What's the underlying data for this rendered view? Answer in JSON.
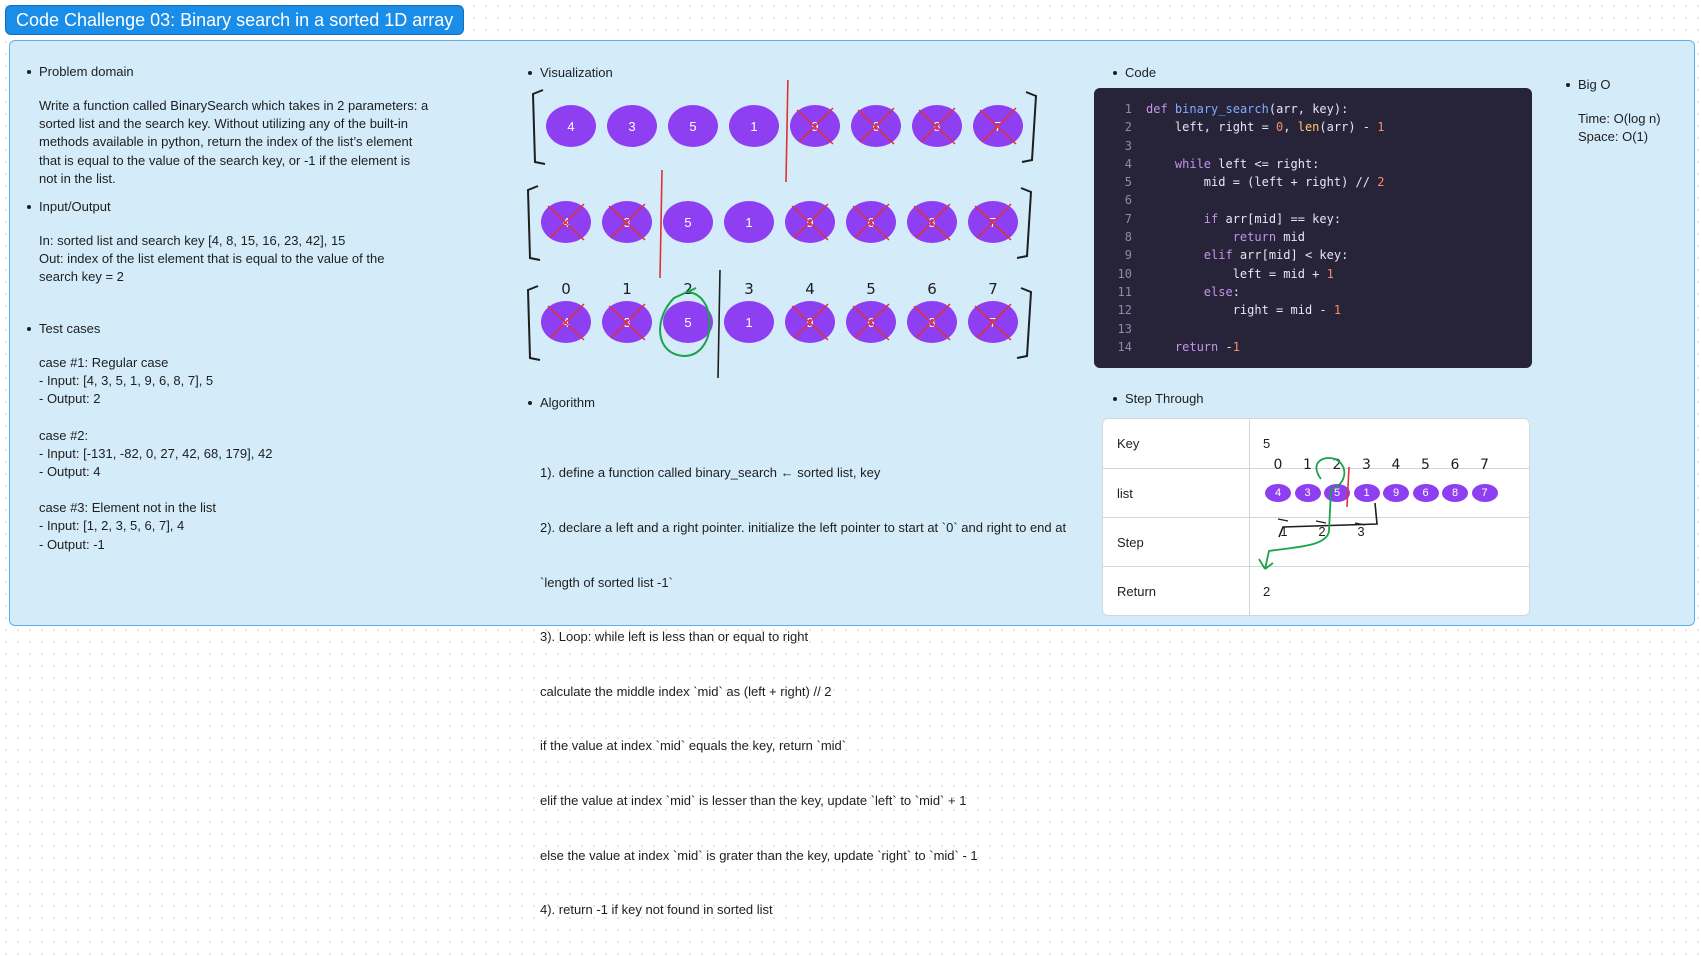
{
  "title": "Code Challenge 03: Binary search in a sorted 1D array",
  "problem": {
    "heading": "Problem domain",
    "lines": [
      "Write a function called BinarySearch which takes in 2 parameters: a",
      "sorted list and the search key. Without utilizing any of the built-in",
      "methods available in python, return the index of the list’s element",
      "that is equal to the value of the search key, or -1 if the element is",
      "not in the list."
    ]
  },
  "io": {
    "heading": "Input/Output",
    "lines": [
      "In: sorted list and search key [4, 8, 15, 16, 23, 42], 15",
      "Out: index of the list element that is equal to the value of the",
      "search key =  2"
    ]
  },
  "tests": {
    "heading": "Test cases",
    "lines": [
      "case #1: Regular case",
      " - Input: [4, 3, 5, 1, 9, 6, 8, 7], 5",
      "- Output: 2",
      "",
      "case #2:",
      " - Input: [-131, -82, 0, 27, 42, 68, 179], 42",
      "- Output: 4",
      "",
      "case #3: Element not in the list",
      " - Input: [1, 2, 3, 5, 6, 7], 4",
      "- Output: -1"
    ]
  },
  "visualization": {
    "heading": "Visualization",
    "values": [
      "4",
      "3",
      "5",
      "1",
      "9",
      "6",
      "8",
      "7"
    ],
    "indices": [
      "0",
      "1",
      "2",
      "3",
      "4",
      "5",
      "6",
      "7"
    ],
    "node_color": "#8f3ff2",
    "cross_color": "#e03131",
    "circle_color": "#1aa34a"
  },
  "algorithm": {
    "heading": "Algorithm",
    "lines": [
      "1). define a function called binary_search ← sorted list, key",
      "2). declare a left and a right pointer. initialize the left pointer to start at `0` and right to end at",
      "`length of sorted list -1`",
      "3). Loop: while left is less than or equal to right",
      "     calculate the middle index `mid` as (left + right) // 2",
      "     if the value at index `mid` equals the key, return `mid`",
      "     elif the value at index `mid` is lesser than the key, update `left` to `mid` + 1",
      "     else the value at index `mid` is grater than the key, update `right` to `mid` - 1",
      "4). return -1 if key not found in sorted list"
    ]
  },
  "code": {
    "heading": "Code",
    "line_numbers": [
      "1",
      "2",
      "3",
      "4",
      "5",
      "6",
      "7",
      "8",
      "9",
      "10",
      "11",
      "12",
      "13",
      "14"
    ]
  },
  "step_through": {
    "heading": "Step Through",
    "rows": [
      {
        "label": "Key",
        "value": "5"
      },
      {
        "label": "list",
        "value": ""
      },
      {
        "label": "Step",
        "value": ""
      },
      {
        "label": "Return",
        "value": "2"
      }
    ],
    "list_values": [
      "4",
      "3",
      "5",
      "1",
      "9",
      "6",
      "8",
      "7"
    ],
    "list_indices": [
      "0",
      "1",
      "2",
      "3",
      "4",
      "5",
      "6",
      "7"
    ],
    "steps": [
      "1",
      "2",
      "3"
    ]
  },
  "big_o": {
    "heading": "Big O",
    "time": "Time: O(log n)",
    "space": "Space: O(1)"
  }
}
